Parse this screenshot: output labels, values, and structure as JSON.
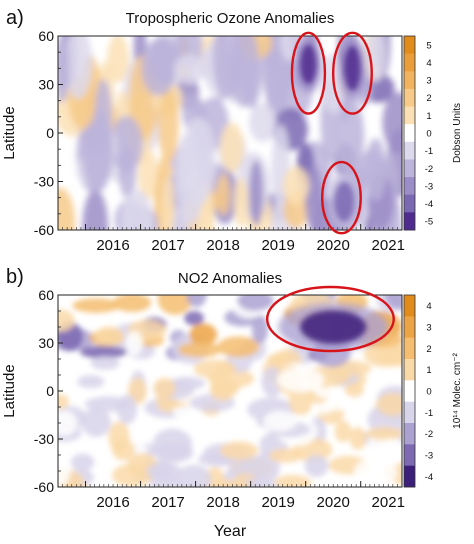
{
  "panels": [
    {
      "panel_label": "a)",
      "chart_data": {
        "type": "heatmap",
        "title": "Tropospheric Ozone Anomalies",
        "xlabel": "",
        "ylabel": "Latitude",
        "x_ticks": [
          "2016",
          "2017",
          "2018",
          "2019",
          "2020",
          "2021"
        ],
        "x_range": [
          2015.5,
          2021.75
        ],
        "y_ticks": [
          60,
          30,
          0,
          -30,
          -60
        ],
        "ylim": [
          -60,
          60
        ],
        "colorbar": {
          "label": "Dobson Units",
          "ticks": [
            5,
            4,
            3,
            2,
            1,
            0,
            -1,
            -2,
            -3,
            -4,
            -5
          ],
          "colors": [
            "#e08b1a",
            "#eb9d3a",
            "#f2b35f",
            "#f7ca8a",
            "#fbe0b5",
            "#ffffff",
            "#ddd9ec",
            "#bcb4da",
            "#9b8dc7",
            "#7a68b3",
            "#4f2b8f"
          ]
        },
        "features": [
          {
            "kind": "negative anomaly",
            "x_range": [
              2019.8,
              2020.3
            ],
            "lat_range": [
              25,
              60
            ],
            "value": -5
          },
          {
            "kind": "negative anomaly",
            "x_range": [
              2020.6,
              2021.1
            ],
            "lat_range": [
              20,
              60
            ],
            "value": -5
          },
          {
            "kind": "negative anomaly",
            "x_range": [
              2020.4,
              2021.0
            ],
            "lat_range": [
              -60,
              -25
            ],
            "value": -4
          }
        ],
        "highlight_circles": [
          {
            "x_range": [
              2019.75,
              2020.35
            ],
            "lat_range": [
              12,
              62
            ]
          },
          {
            "x_range": [
              2020.5,
              2021.2
            ],
            "lat_range": [
              12,
              62
            ]
          },
          {
            "x_range": [
              2020.3,
              2021.0
            ],
            "lat_range": [
              -62,
              -18
            ]
          }
        ]
      }
    },
    {
      "panel_label": "b)",
      "chart_data": {
        "type": "heatmap",
        "title": "NO2 Anomalies",
        "xlabel": "Year",
        "ylabel": "Latitude",
        "x_ticks": [
          "2016",
          "2017",
          "2018",
          "2019",
          "2020",
          "2021"
        ],
        "x_range": [
          2015.5,
          2021.75
        ],
        "y_ticks": [
          60,
          30,
          0,
          -30,
          -60
        ],
        "ylim": [
          -60,
          60
        ],
        "colorbar": {
          "label": "10¹⁴ Molec. cm⁻²",
          "ticks": [
            4,
            3,
            2,
            1,
            0,
            -1,
            -2,
            -3,
            -4
          ],
          "colors": [
            "#e08b1a",
            "#eda445",
            "#f4bd70",
            "#fad9a8",
            "#ffffff",
            "#d8d4ea",
            "#aca2d2",
            "#7d6ab3",
            "#3c1f78"
          ]
        },
        "features": [
          {
            "kind": "negative anomaly",
            "x_range": [
              2019.5,
              2021.5
            ],
            "lat_range": [
              25,
              55
            ],
            "value": -4
          }
        ],
        "highlight_circles": [
          {
            "x_range": [
              2019.3,
              2021.6
            ],
            "lat_range": [
              25,
              65
            ]
          }
        ]
      }
    }
  ]
}
